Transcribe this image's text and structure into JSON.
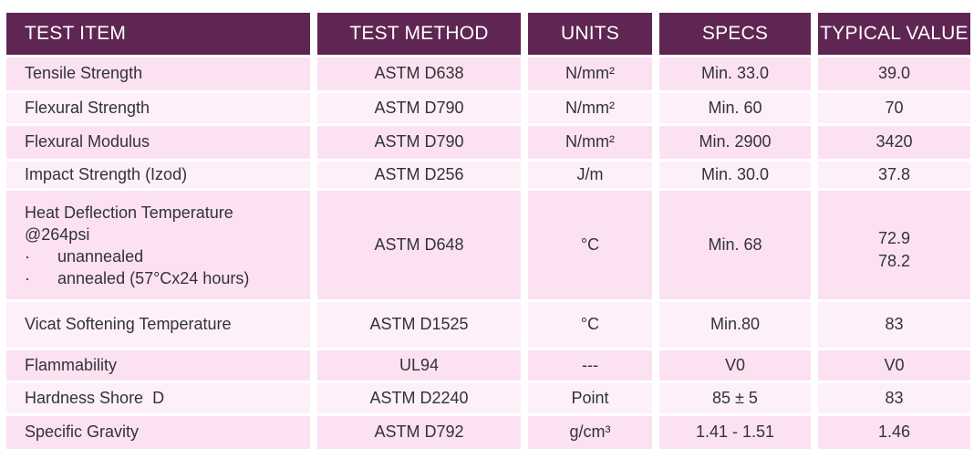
{
  "table": {
    "headers": [
      "TEST ITEM",
      "TEST METHOD",
      "UNITS",
      "SPECS",
      "TYPICAL VALUE"
    ],
    "rows": [
      {
        "item": "Tensile Strength",
        "method": "ASTM D638",
        "units": "N/mm²",
        "specs": "Min. 33.0",
        "value": "39.0"
      },
      {
        "item": "Flexural Strength",
        "method": "ASTM D790",
        "units": "N/mm²",
        "specs": "Min. 60",
        "value": "70"
      },
      {
        "item": "Flexural Modulus",
        "method": "ASTM D790",
        "units": "N/mm²",
        "specs": "Min. 2900",
        "value": "3420"
      },
      {
        "item": "Impact Strength (Izod)",
        "method": "ASTM D256",
        "units": "J/m",
        "specs": "Min. 30.0",
        "value": "37.8"
      },
      {
        "item": "Heat Deflection Temperature",
        "item_line2": "@264psi",
        "bullet": "·",
        "sub1": "unannealed",
        "sub2": "annealed (57°Cx24 hours)",
        "method": "ASTM D648",
        "units": "°C",
        "specs": "Min. 68",
        "value": "72.9",
        "value2": "78.2"
      },
      {
        "item": "Vicat Softening Temperature",
        "method": "ASTM D1525",
        "units": "°C",
        "specs": "Min.80",
        "value": "83"
      },
      {
        "item": "Flammability",
        "method": "UL94",
        "units": "---",
        "specs": "V0",
        "value": "V0"
      },
      {
        "item": "Hardness Shore  D",
        "method": "ASTM D2240",
        "units": "Point",
        "specs": "85 ± 5",
        "value": "83"
      },
      {
        "item": "Specific Gravity",
        "method": "ASTM D792",
        "units": "g/cm³",
        "specs": "1.41 - 1.51",
        "value": "1.46"
      }
    ]
  },
  "colors": {
    "header_bg": "#5f2553",
    "header_text": "#ffffff",
    "row_pink": "#fce1f3",
    "row_light": "#fdf0f9",
    "body_text": "#333333"
  }
}
